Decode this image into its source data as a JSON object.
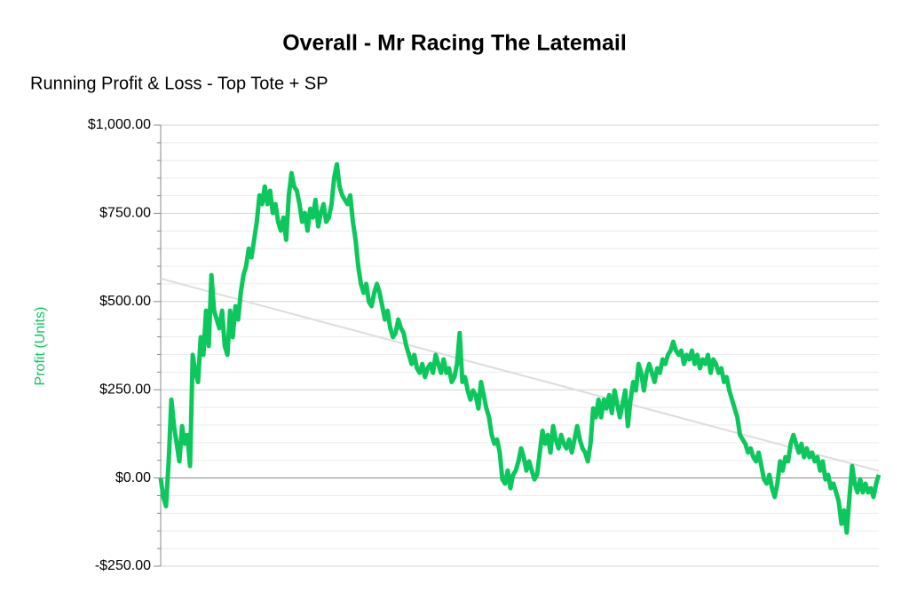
{
  "chart_data": {
    "type": "line",
    "title": "Overall - Mr Racing The Latemail",
    "subtitle": "Running Profit & Loss - Top Tote + SP",
    "y_label": "Profit (Units)",
    "color": "#0cc85c",
    "ylim": [
      -250,
      1000
    ],
    "yticks": [
      {
        "value": -250,
        "label": "-$250.00"
      },
      {
        "value": 0,
        "label": "$0.00"
      },
      {
        "value": 250,
        "label": "$250.00"
      },
      {
        "value": 500,
        "label": "$500.00"
      },
      {
        "value": 750,
        "label": "$750.00"
      },
      {
        "value": 1000,
        "label": "$1,000.00"
      }
    ],
    "minor_yticks": [
      -200,
      -150,
      -100,
      -50,
      50,
      100,
      150,
      200,
      300,
      350,
      400,
      450,
      550,
      600,
      650,
      700,
      800,
      850,
      900,
      950
    ],
    "grid": true,
    "trendline": {
      "color": "#dddddd",
      "values": [
        565,
        20
      ]
    },
    "values": [
      0,
      -54,
      -80,
      47,
      222,
      147,
      97,
      47,
      147,
      97,
      122,
      34,
      349,
      299,
      272,
      399,
      349,
      474,
      374,
      575,
      474,
      449,
      424,
      474,
      374,
      349,
      474,
      399,
      487,
      449,
      525,
      575,
      600,
      650,
      625,
      675,
      726,
      801,
      776,
      826,
      776,
      814,
      751,
      776,
      726,
      701,
      738,
      675,
      801,
      864,
      826,
      814,
      776,
      726,
      751,
      701,
      763,
      738,
      788,
      713,
      751,
      776,
      726,
      738,
      776,
      851,
      889,
      826,
      801,
      788,
      776,
      801,
      726,
      675,
      600,
      550,
      525,
      550,
      499,
      487,
      525,
      550,
      525,
      487,
      449,
      474,
      424,
      399,
      411,
      449,
      424,
      411,
      374,
      349,
      323,
      349,
      311,
      298,
      323,
      286,
      311,
      323,
      298,
      349,
      323,
      298,
      336,
      298,
      311,
      272,
      286,
      323,
      411,
      272,
      286,
      248,
      222,
      248,
      235,
      197,
      272,
      235,
      197,
      172,
      122,
      97,
      109,
      72,
      -4,
      -16,
      21,
      -29,
      9,
      21,
      47,
      84,
      59,
      21,
      47,
      21,
      -4,
      9,
      72,
      134,
      97,
      122,
      72,
      147,
      109,
      84,
      122,
      97,
      84,
      109,
      72,
      109,
      147,
      109,
      84,
      72,
      47,
      97,
      197,
      172,
      222,
      172,
      222,
      197,
      235,
      184,
      248,
      210,
      172,
      210,
      248,
      147,
      222,
      272,
      248,
      323,
      298,
      248,
      298,
      323,
      298,
      272,
      311,
      298,
      336,
      323,
      349,
      361,
      386,
      361,
      349,
      361,
      323,
      349,
      336,
      361,
      323,
      349,
      311,
      336,
      323,
      349,
      298,
      336,
      323,
      298,
      311,
      272,
      286,
      248,
      222,
      197,
      172,
      122,
      109,
      97,
      72,
      84,
      59,
      47,
      72,
      34,
      -4,
      -16,
      9,
      -29,
      -54,
      -16,
      47,
      21,
      59,
      47,
      97,
      122,
      97,
      72,
      97,
      59,
      84,
      59,
      72,
      47,
      59,
      21,
      47,
      -4,
      9,
      -29,
      -16,
      -41,
      -67,
      -130,
      -92,
      -155,
      -54,
      34,
      -16,
      -41,
      -4,
      -41,
      -16,
      -41,
      -29,
      -54,
      -16,
      9
    ]
  }
}
